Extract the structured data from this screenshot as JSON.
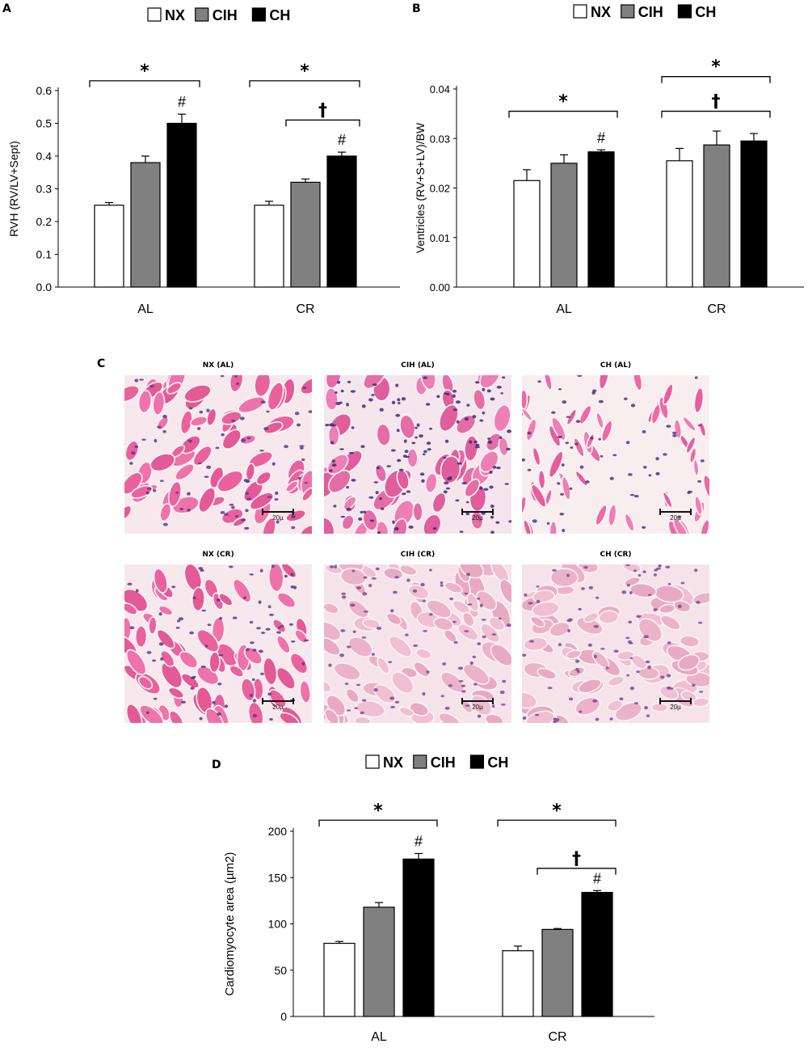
{
  "colors": {
    "NX": "#ffffff",
    "CIH": "#808080",
    "CH": "#000000"
  },
  "legend": [
    "NX",
    "CIH",
    "CH"
  ],
  "panels": {
    "A": "A",
    "B": "B",
    "C": "C",
    "D": "D"
  },
  "chart_data": [
    {
      "type": "bar",
      "panel": "A",
      "categories": [
        "AL",
        "CR"
      ],
      "series": [
        {
          "name": "NX",
          "values": [
            0.25,
            0.25
          ],
          "errors": [
            0.008,
            0.012
          ]
        },
        {
          "name": "CIH",
          "values": [
            0.38,
            0.32
          ],
          "errors": [
            0.02,
            0.01
          ]
        },
        {
          "name": "CH",
          "values": [
            0.5,
            0.4
          ],
          "errors": [
            0.028,
            0.012
          ]
        }
      ],
      "ylabel": "RVH (RV/LV+Sept)",
      "ylim": [
        0,
        0.6
      ],
      "yticks": [
        "0.0",
        "0.1",
        "0.2",
        "0.3",
        "0.4",
        "0.5",
        "0.6"
      ],
      "annotations": [
        {
          "text": "*",
          "category": "AL",
          "from": "NX",
          "to": "CH",
          "level": 0.63
        },
        {
          "text": "*",
          "category": "CR",
          "from": "NX",
          "to": "CH",
          "level": 0.63
        },
        {
          "text": "†",
          "category": "CR",
          "from": "CIH",
          "to": "CH",
          "level": 0.51
        },
        {
          "text": "#",
          "category": "AL",
          "on": "CH"
        },
        {
          "text": "#",
          "category": "CR",
          "on": "CH"
        }
      ]
    },
    {
      "type": "bar",
      "panel": "B",
      "categories": [
        "AL",
        "CR"
      ],
      "series": [
        {
          "name": "NX",
          "values": [
            0.0215,
            0.0255
          ],
          "errors": [
            0.0022,
            0.0025
          ]
        },
        {
          "name": "CIH",
          "values": [
            0.025,
            0.0287
          ],
          "errors": [
            0.0017,
            0.0028
          ]
        },
        {
          "name": "CH",
          "values": [
            0.0273,
            0.0295
          ],
          "errors": [
            0.0004,
            0.0015
          ]
        }
      ],
      "ylabel": "Ventricles (RV+S+LV)/BW",
      "ylim": [
        0,
        0.04
      ],
      "yticks": [
        "0.00",
        "0.01",
        "0.02",
        "0.03",
        "0.04"
      ],
      "annotations": [
        {
          "text": "*",
          "category": "AL",
          "from": "NX",
          "to": "CH",
          "level": 0.0355
        },
        {
          "text": "*",
          "category": "CR",
          "from": "NX",
          "to": "CH",
          "level": 0.0425
        },
        {
          "text": "†",
          "category": "CR",
          "from": "NX",
          "to": "CH",
          "level": 0.0355
        },
        {
          "text": "#",
          "category": "AL",
          "on": "CH"
        }
      ]
    },
    {
      "type": "bar",
      "panel": "D",
      "categories": [
        "AL",
        "CR"
      ],
      "series": [
        {
          "name": "NX",
          "values": [
            79,
            71
          ],
          "errors": [
            2,
            5
          ]
        },
        {
          "name": "CIH",
          "values": [
            118,
            94
          ],
          "errors": [
            5,
            1
          ]
        },
        {
          "name": "CH",
          "values": [
            170,
            134
          ],
          "errors": [
            6,
            2
          ]
        }
      ],
      "ylabel": "Cardiomyocyte area (µm2)",
      "ylim": [
        0,
        200
      ],
      "yticks": [
        "0",
        "50",
        "100",
        "150",
        "200"
      ],
      "annotations": [
        {
          "text": "*",
          "category": "AL",
          "from": "NX",
          "to": "CH",
          "level": 212
        },
        {
          "text": "*",
          "category": "CR",
          "from": "NX",
          "to": "CH",
          "level": 212
        },
        {
          "text": "†",
          "category": "CR",
          "from": "CIH",
          "to": "CH",
          "level": 160
        },
        {
          "text": "#",
          "category": "AL",
          "on": "CH"
        },
        {
          "text": "#",
          "category": "CR",
          "on": "CH"
        }
      ]
    }
  ],
  "micrographs": [
    {
      "title": "NX (AL)",
      "scale": "20µ",
      "tone": "bright"
    },
    {
      "title": "CIH (AL)",
      "scale": "20µ",
      "tone": "dense"
    },
    {
      "title": "CH (AL)",
      "scale": "20µ",
      "tone": "elongated"
    },
    {
      "title": "NX (CR)",
      "scale": "20µ",
      "tone": "bright"
    },
    {
      "title": "CIH (CR)",
      "scale": "20µ",
      "tone": "pale"
    },
    {
      "title": "CH (CR)",
      "scale": "20µ",
      "tone": "pale"
    }
  ]
}
